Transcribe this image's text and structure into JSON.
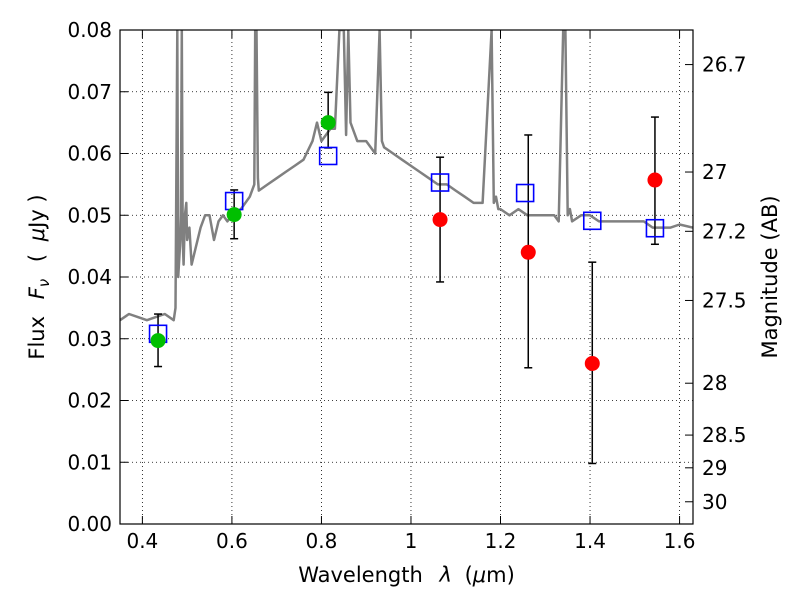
{
  "chart_data": {
    "type": "scatter",
    "xlabel_main": "Wavelength",
    "xlabel_var": "λ",
    "xlabel_unit_open": "(",
    "xlabel_unit_mu": "μ",
    "xlabel_unit_rest": "m)",
    "ylabel_main": "Flux",
    "ylabel_var": "F",
    "ylabel_sub": "ν",
    "ylabel_unit_open": "(",
    "ylabel_unit_mu": "μ",
    "ylabel_unit_rest": "Jy )",
    "ylabel_right": "Magnitude (AB)",
    "xlim": [
      0.35,
      1.63
    ],
    "ylim": [
      0.0,
      0.08
    ],
    "x_ticks": [
      0.4,
      0.6,
      0.8,
      1.0,
      1.2,
      1.4,
      1.6
    ],
    "x_tick_labels": [
      "0.4",
      "0.6",
      "0.8",
      "1",
      "1.2",
      "1.4",
      "1.6"
    ],
    "y_ticks": [
      0.0,
      0.01,
      0.02,
      0.03,
      0.04,
      0.05,
      0.06,
      0.07,
      0.08
    ],
    "y_tick_labels": [
      "0.00",
      "0.01",
      "0.02",
      "0.03",
      "0.04",
      "0.05",
      "0.06",
      "0.07",
      "0.08"
    ],
    "right_ticks": [
      {
        "label": "26.7",
        "flux": 0.0744
      },
      {
        "label": "27",
        "flux": 0.057
      },
      {
        "label": "27.2",
        "flux": 0.0474
      },
      {
        "label": "27.5",
        "flux": 0.0362
      },
      {
        "label": "28",
        "flux": 0.0228
      },
      {
        "label": "28.5",
        "flux": 0.0144
      },
      {
        "label": "29",
        "flux": 0.0091
      },
      {
        "label": "30",
        "flux": 0.0036
      }
    ],
    "grid": true,
    "model_spectrum": {
      "color": "#808080",
      "x": [
        0.35,
        0.37,
        0.39,
        0.41,
        0.43,
        0.45,
        0.47,
        0.474,
        0.478,
        0.48,
        0.484,
        0.486,
        0.488,
        0.49,
        0.492,
        0.495,
        0.498,
        0.5,
        0.505,
        0.51,
        0.52,
        0.53,
        0.54,
        0.55,
        0.56,
        0.57,
        0.58,
        0.59,
        0.6,
        0.62,
        0.64,
        0.65,
        0.652,
        0.655,
        0.658,
        0.66,
        0.68,
        0.7,
        0.72,
        0.74,
        0.76,
        0.78,
        0.79,
        0.8,
        0.81,
        0.82,
        0.83,
        0.84,
        0.85,
        0.855,
        0.86,
        0.865,
        0.87,
        0.88,
        0.9,
        0.92,
        0.93,
        0.935,
        0.94,
        0.96,
        0.98,
        1.0,
        1.02,
        1.04,
        1.06,
        1.08,
        1.1,
        1.12,
        1.14,
        1.16,
        1.18,
        1.185,
        1.19,
        1.195,
        1.2,
        1.22,
        1.24,
        1.26,
        1.28,
        1.3,
        1.32,
        1.33,
        1.34,
        1.345,
        1.35,
        1.355,
        1.36,
        1.38,
        1.4,
        1.42,
        1.44,
        1.46,
        1.48,
        1.5,
        1.52,
        1.54,
        1.56,
        1.58,
        1.6,
        1.63
      ],
      "y": [
        0.033,
        0.034,
        0.0335,
        0.033,
        0.0335,
        0.034,
        0.033,
        0.035,
        0.08,
        0.04,
        0.045,
        0.05,
        0.08,
        0.046,
        0.042,
        0.05,
        0.052,
        0.046,
        0.048,
        0.042,
        0.045,
        0.048,
        0.05,
        0.05,
        0.046,
        0.049,
        0.05,
        0.049,
        0.05,
        0.051,
        0.053,
        0.055,
        0.08,
        0.08,
        0.056,
        0.054,
        0.055,
        0.056,
        0.057,
        0.058,
        0.059,
        0.062,
        0.065,
        0.062,
        0.063,
        0.064,
        0.064,
        0.08,
        0.08,
        0.063,
        0.08,
        0.065,
        0.064,
        0.062,
        0.062,
        0.06,
        0.08,
        0.062,
        0.061,
        0.06,
        0.059,
        0.058,
        0.057,
        0.056,
        0.055,
        0.055,
        0.054,
        0.053,
        0.052,
        0.052,
        0.08,
        0.052,
        0.053,
        0.051,
        0.051,
        0.05,
        0.051,
        0.05,
        0.05,
        0.05,
        0.05,
        0.049,
        0.08,
        0.08,
        0.05,
        0.051,
        0.049,
        0.05,
        0.05,
        0.049,
        0.049,
        0.049,
        0.049,
        0.049,
        0.049,
        0.048,
        0.048,
        0.048,
        0.0485,
        0.048
      ]
    },
    "squares": {
      "color": "#0000ff",
      "points": [
        {
          "x": 0.435,
          "y": 0.0308
        },
        {
          "x": 0.605,
          "y": 0.0523
        },
        {
          "x": 0.815,
          "y": 0.0596
        },
        {
          "x": 1.065,
          "y": 0.0553
        },
        {
          "x": 1.255,
          "y": 0.0536
        },
        {
          "x": 1.405,
          "y": 0.0491
        },
        {
          "x": 1.545,
          "y": 0.0479
        }
      ]
    },
    "green_points": {
      "color": "#00bf00",
      "points": [
        {
          "x": 0.435,
          "y": 0.0297
        },
        {
          "x": 0.605,
          "y": 0.0501
        },
        {
          "x": 0.815,
          "y": 0.065
        }
      ]
    },
    "red_points": {
      "color": "#ff0000",
      "points": [
        {
          "x": 1.065,
          "y": 0.0493
        },
        {
          "x": 1.262,
          "y": 0.044
        },
        {
          "x": 1.405,
          "y": 0.026
        },
        {
          "x": 1.545,
          "y": 0.0557
        }
      ]
    },
    "error_bars": [
      {
        "x": 0.435,
        "low": 0.0255,
        "high": 0.034
      },
      {
        "x": 0.605,
        "low": 0.0462,
        "high": 0.0541
      },
      {
        "x": 0.815,
        "low": 0.0609,
        "high": 0.0699
      },
      {
        "x": 1.065,
        "low": 0.0392,
        "high": 0.0594
      },
      {
        "x": 1.262,
        "low": 0.0253,
        "high": 0.063
      },
      {
        "x": 1.405,
        "low": 0.0098,
        "high": 0.0424
      },
      {
        "x": 1.545,
        "low": 0.0453,
        "high": 0.0659
      }
    ]
  }
}
